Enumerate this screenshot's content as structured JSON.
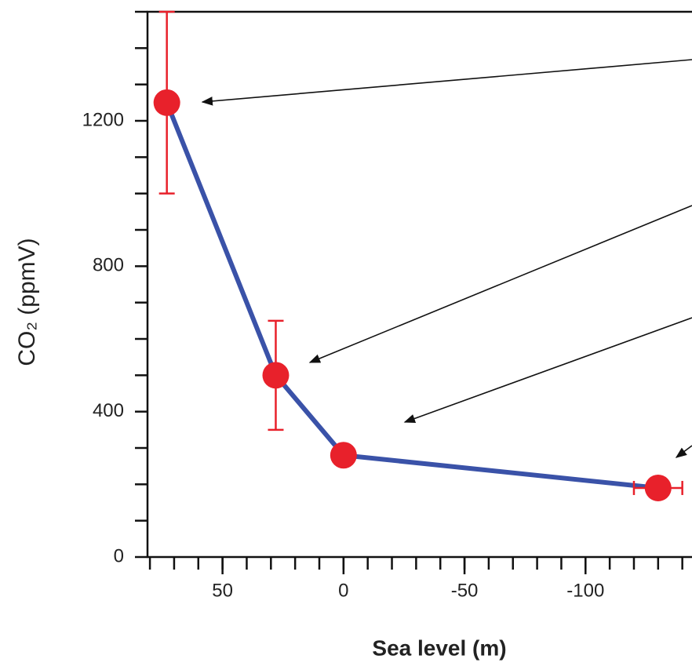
{
  "chart_data": {
    "type": "line",
    "x_label": "Sea level (m)",
    "y_label": "CO₂ (ppmV)",
    "x": [
      73,
      28,
      0,
      -130
    ],
    "series": [
      {
        "color": "#3a52a8",
        "marker_color": "#e8212b",
        "values": [
          1250,
          500,
          280,
          190
        ],
        "y_err": [
          250,
          150,
          null,
          null
        ],
        "x_err": [
          null,
          null,
          null,
          10
        ]
      }
    ],
    "xlim": [
      81,
      -144
    ],
    "xticks": [
      50,
      0,
      -50,
      -100
    ],
    "x_minor_ticks": [
      80,
      70,
      60,
      50,
      40,
      30,
      20,
      10,
      0,
      -10,
      -20,
      -30,
      -40,
      -50,
      -60,
      -70,
      -80,
      -90,
      -100,
      -110,
      -120,
      -130,
      -140
    ],
    "ylim": [
      0,
      1500
    ],
    "yticks": [
      0,
      400,
      800,
      1200
    ],
    "y_minor_ticks": [
      100,
      200,
      300,
      500,
      600,
      700,
      900,
      1000,
      1100,
      1300,
      1400,
      1500
    ]
  }
}
